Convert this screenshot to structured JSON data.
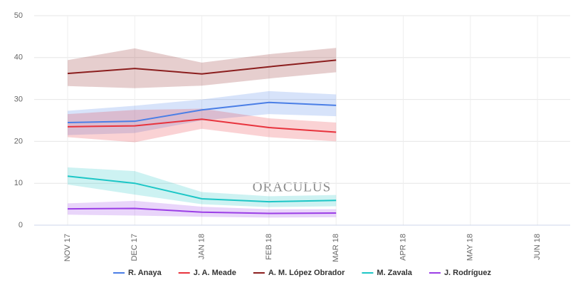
{
  "chart_data": {
    "type": "line",
    "categories": [
      "NOV 17",
      "DEC 17",
      "JAN 18",
      "FEB 18",
      "MAR 18",
      "APR 18",
      "MAY 18",
      "JUN 18"
    ],
    "series": [
      {
        "name": "R. Anaya",
        "color": "#4a7ee6",
        "values": [
          24.5,
          24.8,
          27.5,
          29.3,
          28.6,
          null,
          null,
          null
        ],
        "lower": [
          21.5,
          22,
          25,
          26.5,
          26,
          null,
          null,
          null
        ],
        "upper": [
          27.3,
          28.5,
          30,
          32,
          31.2,
          null,
          null,
          null
        ]
      },
      {
        "name": "J. A. Meade",
        "color": "#e8333d",
        "values": [
          23.5,
          23.7,
          25.3,
          23.3,
          22.2,
          null,
          null,
          null
        ],
        "lower": [
          21,
          19.8,
          23,
          21,
          20,
          null,
          null,
          null
        ],
        "upper": [
          26.5,
          27.5,
          27.8,
          25.5,
          24.5,
          null,
          null,
          null
        ]
      },
      {
        "name": "A. M. López Obrador",
        "color": "#8b1e1e",
        "values": [
          36.2,
          37.4,
          36.1,
          37.8,
          39.4,
          null,
          null,
          null
        ],
        "lower": [
          33.2,
          32.7,
          33.3,
          35,
          36.5,
          null,
          null,
          null
        ],
        "upper": [
          39.4,
          42.2,
          38.8,
          40.8,
          42.3,
          null,
          null,
          null
        ]
      },
      {
        "name": "M. Zavala",
        "color": "#1cc6c6",
        "values": [
          11.7,
          10,
          6.3,
          5.6,
          5.9,
          null,
          null,
          null
        ],
        "lower": [
          9.7,
          7.3,
          5,
          4.3,
          4.5,
          null,
          null,
          null
        ],
        "upper": [
          13.8,
          12.9,
          7.9,
          6.9,
          7.2,
          null,
          null,
          null
        ]
      },
      {
        "name": "J. Rodríguez",
        "color": "#9b3ee6",
        "values": [
          3.9,
          4,
          3.1,
          2.8,
          2.9,
          null,
          null,
          null
        ],
        "lower": [
          2.5,
          2.3,
          2,
          1.8,
          1.9,
          null,
          null,
          null
        ],
        "upper": [
          5.2,
          5.8,
          4.4,
          3.8,
          3.8,
          null,
          null,
          null
        ]
      }
    ],
    "ylim": [
      0,
      50
    ],
    "yticks": [
      0,
      10,
      20,
      30,
      40,
      50
    ],
    "grid": true,
    "watermark": "ORACULUS",
    "legend": "bottom"
  }
}
